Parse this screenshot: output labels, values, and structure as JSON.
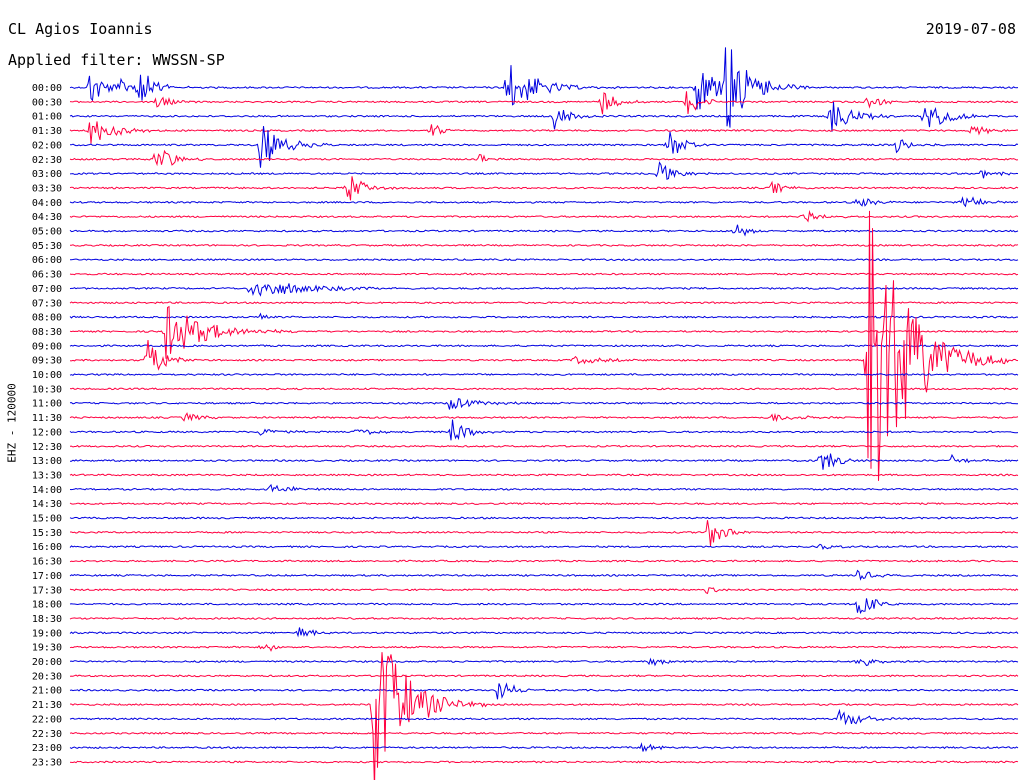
{
  "header": {
    "station": "CL Agios Ioannis",
    "date": "2019-07-08",
    "filter_label": "Applied filter: WWSSN-SP"
  },
  "chart_data": {
    "type": "line",
    "title": "CL Agios Ioannis",
    "ylabel": "EHZ - 120000",
    "colors": {
      "even_trace": "#0000e0",
      "odd_trace": "#ff0040"
    },
    "trace_labels": [
      "00:00",
      "00:30",
      "01:00",
      "01:30",
      "02:00",
      "02:30",
      "03:00",
      "03:30",
      "04:00",
      "04:30",
      "05:00",
      "05:30",
      "06:00",
      "06:30",
      "07:00",
      "07:30",
      "08:00",
      "08:30",
      "09:00",
      "09:30",
      "10:00",
      "10:30",
      "11:00",
      "11:30",
      "12:00",
      "12:30",
      "13:00",
      "13:30",
      "14:00",
      "14:30",
      "15:00",
      "15:30",
      "16:00",
      "16:30",
      "17:00",
      "17:30",
      "18:00",
      "18:30",
      "19:00",
      "19:30",
      "20:00",
      "20:30",
      "21:00",
      "21:30",
      "22:00",
      "22:30",
      "23:00",
      "23:30"
    ],
    "events": [
      {
        "trace": 0,
        "t": 0.02,
        "amp": 1.6,
        "dur": 0.02
      },
      {
        "trace": 0,
        "t": 0.05,
        "amp": 0.8,
        "dur": 0.02
      },
      {
        "trace": 0,
        "t": 0.07,
        "amp": 2.0,
        "dur": 0.02
      },
      {
        "trace": 0,
        "t": 0.46,
        "amp": 2.0,
        "dur": 0.04
      },
      {
        "trace": 0,
        "t": 0.66,
        "amp": 2.0,
        "dur": 0.03
      },
      {
        "trace": 0,
        "t": 0.69,
        "amp": 4.3,
        "dur": 0.03
      },
      {
        "trace": 1,
        "t": 0.09,
        "amp": 0.6,
        "dur": 0.02
      },
      {
        "trace": 1,
        "t": 0.56,
        "amp": 1.0,
        "dur": 0.02
      },
      {
        "trace": 1,
        "t": 0.65,
        "amp": 1.0,
        "dur": 0.02
      },
      {
        "trace": 1,
        "t": 0.84,
        "amp": 0.5,
        "dur": 0.02
      },
      {
        "trace": 2,
        "t": 0.51,
        "amp": 1.0,
        "dur": 0.02
      },
      {
        "trace": 2,
        "t": 0.8,
        "amp": 1.4,
        "dur": 0.03
      },
      {
        "trace": 2,
        "t": 0.9,
        "amp": 1.2,
        "dur": 0.03
      },
      {
        "trace": 3,
        "t": 0.02,
        "amp": 1.2,
        "dur": 0.03
      },
      {
        "trace": 3,
        "t": 0.38,
        "amp": 0.5,
        "dur": 0.02
      },
      {
        "trace": 3,
        "t": 0.95,
        "amp": 0.6,
        "dur": 0.02
      },
      {
        "trace": 4,
        "t": 0.2,
        "amp": 1.8,
        "dur": 0.03
      },
      {
        "trace": 4,
        "t": 0.63,
        "amp": 1.4,
        "dur": 0.02
      },
      {
        "trace": 4,
        "t": 0.87,
        "amp": 0.6,
        "dur": 0.02
      },
      {
        "trace": 5,
        "t": 0.09,
        "amp": 1.4,
        "dur": 0.02
      },
      {
        "trace": 5,
        "t": 0.43,
        "amp": 0.4,
        "dur": 0.02
      },
      {
        "trace": 6,
        "t": 0.62,
        "amp": 1.0,
        "dur": 0.02
      },
      {
        "trace": 6,
        "t": 0.96,
        "amp": 0.5,
        "dur": 0.02
      },
      {
        "trace": 7,
        "t": 0.29,
        "amp": 1.4,
        "dur": 0.02
      },
      {
        "trace": 7,
        "t": 0.74,
        "amp": 0.5,
        "dur": 0.02
      },
      {
        "trace": 8,
        "t": 0.83,
        "amp": 0.5,
        "dur": 0.02
      },
      {
        "trace": 8,
        "t": 0.94,
        "amp": 0.7,
        "dur": 0.02
      },
      {
        "trace": 9,
        "t": 0.77,
        "amp": 1.0,
        "dur": 0.02
      },
      {
        "trace": 10,
        "t": 0.7,
        "amp": 0.7,
        "dur": 0.02
      },
      {
        "trace": 14,
        "t": 0.19,
        "amp": 0.8,
        "dur": 0.07
      },
      {
        "trace": 16,
        "t": 0.2,
        "amp": 0.4,
        "dur": 0.01
      },
      {
        "trace": 17,
        "t": 0.1,
        "amp": 2.2,
        "dur": 0.05
      },
      {
        "trace": 19,
        "t": 0.08,
        "amp": 2.0,
        "dur": 0.02
      },
      {
        "trace": 19,
        "t": 0.53,
        "amp": 0.3,
        "dur": 0.04
      },
      {
        "trace": 19,
        "t": 0.84,
        "amp": 14.0,
        "dur": 0.05
      },
      {
        "trace": 22,
        "t": 0.4,
        "amp": 0.5,
        "dur": 0.04
      },
      {
        "trace": 23,
        "t": 0.12,
        "amp": 0.4,
        "dur": 0.02
      },
      {
        "trace": 23,
        "t": 0.74,
        "amp": 0.3,
        "dur": 0.04
      },
      {
        "trace": 24,
        "t": 0.4,
        "amp": 1.2,
        "dur": 0.02
      },
      {
        "trace": 24,
        "t": 0.2,
        "amp": 0.3,
        "dur": 0.03
      },
      {
        "trace": 24,
        "t": 0.3,
        "amp": 0.3,
        "dur": 0.03
      },
      {
        "trace": 26,
        "t": 0.79,
        "amp": 1.2,
        "dur": 0.02
      },
      {
        "trace": 26,
        "t": 0.93,
        "amp": 0.4,
        "dur": 0.02
      },
      {
        "trace": 28,
        "t": 0.21,
        "amp": 0.4,
        "dur": 0.03
      },
      {
        "trace": 31,
        "t": 0.67,
        "amp": 1.5,
        "dur": 0.02
      },
      {
        "trace": 32,
        "t": 0.79,
        "amp": 0.3,
        "dur": 0.02
      },
      {
        "trace": 34,
        "t": 0.83,
        "amp": 0.5,
        "dur": 0.02
      },
      {
        "trace": 35,
        "t": 0.67,
        "amp": 1.0,
        "dur": 0.01
      },
      {
        "trace": 36,
        "t": 0.83,
        "amp": 1.2,
        "dur": 0.02
      },
      {
        "trace": 38,
        "t": 0.24,
        "amp": 0.5,
        "dur": 0.02
      },
      {
        "trace": 39,
        "t": 0.2,
        "amp": 0.5,
        "dur": 0.02
      },
      {
        "trace": 40,
        "t": 0.61,
        "amp": 0.4,
        "dur": 0.02
      },
      {
        "trace": 40,
        "t": 0.83,
        "amp": 0.5,
        "dur": 0.02
      },
      {
        "trace": 42,
        "t": 0.45,
        "amp": 1.0,
        "dur": 0.02
      },
      {
        "trace": 43,
        "t": 0.32,
        "amp": 7.0,
        "dur": 0.04
      },
      {
        "trace": 44,
        "t": 0.81,
        "amp": 0.8,
        "dur": 0.03
      },
      {
        "trace": 46,
        "t": 0.6,
        "amp": 0.4,
        "dur": 0.02
      }
    ]
  }
}
